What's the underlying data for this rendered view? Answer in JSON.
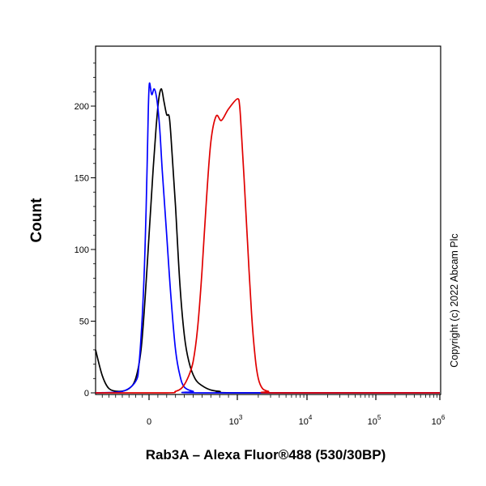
{
  "chart_data": {
    "type": "line",
    "title": "",
    "xlabel": "Rab3A – Alexa Fluor®488 (530/30BP)",
    "ylabel": "Count",
    "ylim": [
      0,
      240
    ],
    "x_scale": "biexponential",
    "x_tick_labels": [
      {
        "base": "0",
        "exp": ""
      },
      {
        "base": "10",
        "exp": "3"
      },
      {
        "base": "10",
        "exp": "4"
      },
      {
        "base": "10",
        "exp": "5"
      },
      {
        "base": "10",
        "exp": "6"
      }
    ],
    "x_tick_values": [
      0,
      1000,
      10000,
      100000,
      1000000
    ],
    "y_ticks": [
      0,
      50,
      100,
      150,
      200
    ],
    "grid": false,
    "legend": "none",
    "series": [
      {
        "color": "#000000",
        "points": [
          [
            -800,
            30
          ],
          [
            -700,
            12
          ],
          [
            -600,
            3
          ],
          [
            -450,
            1
          ],
          [
            -300,
            3
          ],
          [
            -200,
            10
          ],
          [
            -120,
            30
          ],
          [
            -60,
            65
          ],
          [
            0,
            110
          ],
          [
            40,
            150
          ],
          [
            80,
            185
          ],
          [
            110,
            205
          ],
          [
            140,
            212
          ],
          [
            170,
            203
          ],
          [
            200,
            194
          ],
          [
            230,
            192
          ],
          [
            260,
            168
          ],
          [
            300,
            130
          ],
          [
            350,
            75
          ],
          [
            400,
            40
          ],
          [
            450,
            22
          ],
          [
            520,
            10
          ],
          [
            600,
            5
          ],
          [
            700,
            2
          ],
          [
            800,
            1
          ],
          [
            1000,
            0
          ],
          [
            1000000,
            0
          ]
        ]
      },
      {
        "color": "#0000ff",
        "points": [
          [
            -800,
            0
          ],
          [
            -400,
            1
          ],
          [
            -200,
            8
          ],
          [
            -150,
            20
          ],
          [
            -100,
            55
          ],
          [
            -60,
            100
          ],
          [
            -30,
            155
          ],
          [
            -10,
            200
          ],
          [
            5,
            216
          ],
          [
            30,
            208
          ],
          [
            60,
            212
          ],
          [
            90,
            204
          ],
          [
            120,
            185
          ],
          [
            150,
            155
          ],
          [
            200,
            110
          ],
          [
            250,
            65
          ],
          [
            300,
            30
          ],
          [
            350,
            12
          ],
          [
            400,
            4
          ],
          [
            500,
            1
          ],
          [
            600,
            0
          ],
          [
            1000000,
            0
          ]
        ]
      },
      {
        "color": "#e00000",
        "points": [
          [
            -800,
            0
          ],
          [
            200,
            0
          ],
          [
            300,
            1
          ],
          [
            380,
            4
          ],
          [
            450,
            12
          ],
          [
            500,
            22
          ],
          [
            550,
            45
          ],
          [
            600,
            85
          ],
          [
            650,
            135
          ],
          [
            700,
            175
          ],
          [
            760,
            193
          ],
          [
            820,
            190
          ],
          [
            900,
            198
          ],
          [
            1000,
            205
          ],
          [
            1080,
            200
          ],
          [
            1150,
            180
          ],
          [
            1250,
            150
          ],
          [
            1400,
            105
          ],
          [
            1600,
            55
          ],
          [
            1800,
            25
          ],
          [
            2000,
            10
          ],
          [
            2300,
            3
          ],
          [
            2800,
            1
          ],
          [
            3500,
            0
          ],
          [
            1000000,
            0
          ]
        ]
      }
    ]
  },
  "copyright": "Copyright (c) 2022 Abcam Plc"
}
